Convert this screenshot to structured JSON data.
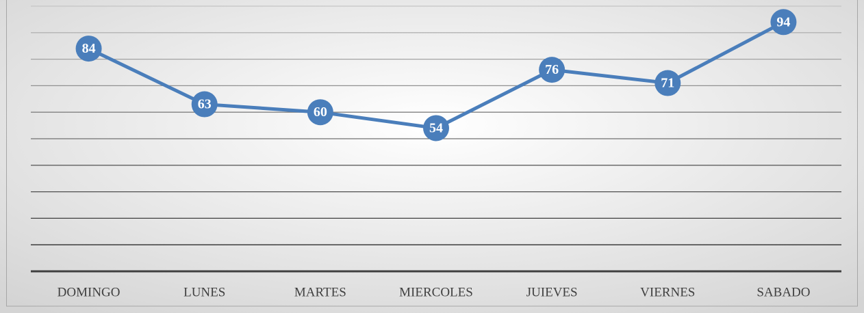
{
  "chart_data": {
    "type": "line",
    "categories": [
      "DOMINGO",
      "LUNES",
      "MARTES",
      "MIERCOLES",
      "JUIEVES",
      "VIERNES",
      "SABADO"
    ],
    "values": [
      84,
      63,
      60,
      54,
      76,
      71,
      94
    ],
    "color": "#4a7ebb",
    "ylim": [
      0,
      100
    ],
    "yticks": [
      0,
      10,
      20,
      30,
      40,
      50,
      60,
      70,
      80,
      90,
      100
    ],
    "grid": true
  }
}
